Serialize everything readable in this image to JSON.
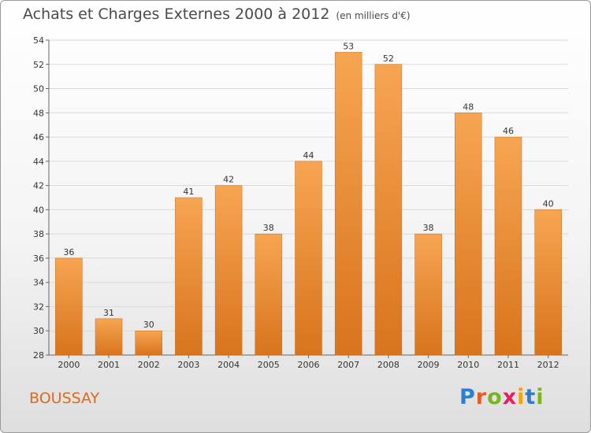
{
  "header": {
    "title": "Achats et Charges Externes 2000 à 2012",
    "unit": "(en milliers d'€)"
  },
  "footer": {
    "commune": "BOUSSAY",
    "logo_text": "Proxiti"
  },
  "colors": {
    "bar_light": "#f7a552",
    "bar_dark": "#d8741c",
    "grid": "#d9d9d9",
    "title": "#4a4a4a",
    "commune": "#e06a1a"
  },
  "chart_data": {
    "type": "bar",
    "title": "Achats et Charges Externes 2000 à 2012",
    "subtitle": "(en milliers d'€)",
    "xlabel": "",
    "ylabel": "",
    "categories": [
      "2000",
      "2001",
      "2002",
      "2003",
      "2004",
      "2005",
      "2006",
      "2007",
      "2008",
      "2009",
      "2010",
      "2011",
      "2012"
    ],
    "values": [
      36,
      31,
      30,
      41,
      42,
      38,
      44,
      53,
      52,
      38,
      48,
      46,
      40
    ],
    "ylim": [
      28,
      54
    ],
    "yticks": [
      28,
      30,
      32,
      34,
      36,
      38,
      40,
      42,
      44,
      46,
      48,
      50,
      52,
      54
    ],
    "grid": true,
    "legend": "none"
  }
}
